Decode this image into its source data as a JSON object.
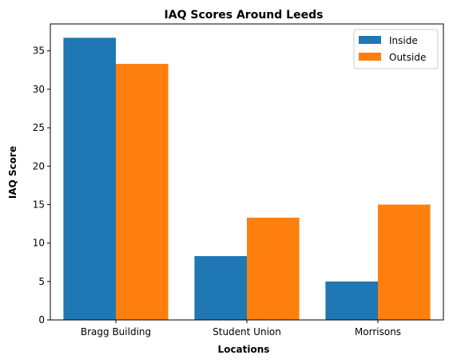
{
  "chart_data": {
    "type": "bar",
    "title": "IAQ Scores Around Leeds",
    "xlabel": "Locations",
    "ylabel": "IAQ Score",
    "categories": [
      "Bragg Building",
      "Student Union",
      "Morrisons"
    ],
    "series": [
      {
        "name": "Inside",
        "color": "#1f77b4",
        "values": [
          36.7,
          8.3,
          5.0
        ]
      },
      {
        "name": "Outside",
        "color": "#ff7f0e",
        "values": [
          33.3,
          13.3,
          15.0
        ]
      }
    ],
    "ylim": [
      0,
      38.5
    ],
    "yticks": [
      0,
      5,
      10,
      15,
      20,
      25,
      30,
      35
    ],
    "grid": false,
    "legend": "top-right"
  }
}
